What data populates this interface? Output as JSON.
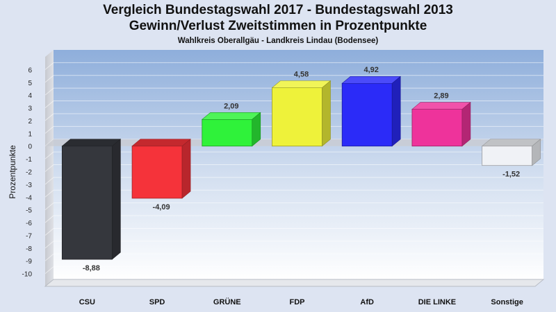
{
  "chart_data": {
    "type": "bar",
    "title": "Vergleich Bundestagswahl 2017 - Bundestagswahl 2013",
    "subtitle": "Gewinn/Verlust Zweitstimmen in Prozentpunkte",
    "caption": "Wahlkreis Oberallgäu - Landkreis Lindau (Bodensee)",
    "xlabel": "",
    "ylabel": "Prozentpunkte",
    "ylim": [
      -11,
      7
    ],
    "yticks": [
      6,
      5,
      4,
      3,
      2,
      1,
      0,
      -1,
      -2,
      -3,
      -4,
      -5,
      -6,
      -7,
      -8,
      -9,
      -10
    ],
    "categories": [
      "CSU",
      "SPD",
      "GRÜNE",
      "FDP",
      "AfD",
      "DIE LINKE",
      "Sonstige"
    ],
    "values": [
      -8.88,
      -4.09,
      2.09,
      4.58,
      4.92,
      2.89,
      -1.52
    ],
    "value_labels": [
      "-8,88",
      "-4,09",
      "2,09",
      "4,58",
      "4,92",
      "2,89",
      "-1,52"
    ],
    "colors": [
      "#35373d",
      "#f5333a",
      "#2ff23a",
      "#eef23a",
      "#2b2bf8",
      "#ee339b",
      "#f0f2f6"
    ],
    "grid": true,
    "legend": "none"
  }
}
